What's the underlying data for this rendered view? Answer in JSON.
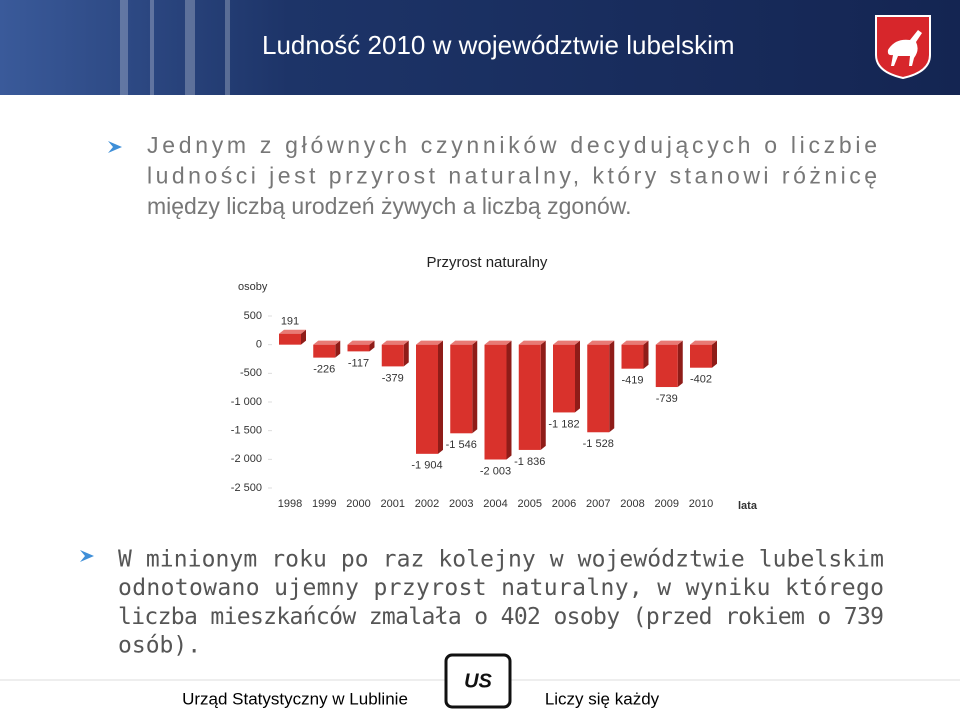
{
  "header": {
    "title": "Ludność 2010 w województwie lubelskim"
  },
  "intro_lines": [
    "Jednym z głównych czynników decydujących o liczbie",
    "ludności  jest przyrost naturalny, który stanowi różnicę",
    "między liczbą urodzeń żywych a liczbą zgonów."
  ],
  "chart_data": {
    "type": "bar",
    "title": "Przyrost naturalny",
    "y_label": "osoby",
    "x_label": "lata",
    "categories": [
      "1998",
      "1999",
      "2000",
      "2001",
      "2002",
      "2003",
      "2004",
      "2005",
      "2006",
      "2007",
      "2008",
      "2009",
      "2010"
    ],
    "values": [
      191,
      -226,
      -117,
      -379,
      -1904,
      -1546,
      -2003,
      -1836,
      -1182,
      -1528,
      -419,
      -739,
      -402
    ],
    "value_labels": [
      "191",
      "-226",
      "-117",
      "-379",
      "-1 904",
      "-1 546",
      "-2 003",
      "-1 836",
      "-1 182",
      "-1 528",
      "-419",
      "-739",
      "-402"
    ],
    "color": "#d9322c",
    "ylim": [
      -2500,
      500
    ],
    "yticks": [
      {
        "value": -2500,
        "label": "-2 500"
      },
      {
        "value": -2000,
        "label": "-2 000"
      },
      {
        "value": -1500,
        "label": "-1 500"
      },
      {
        "value": -1000,
        "label": "-1 000"
      },
      -500,
      0,
      500
    ],
    "grid": false
  },
  "summary_lines": [
    "W minionym roku po raz kolejny w województwie lubelskim",
    "odnotowano ujemny przyrost naturalny, w wyniku którego",
    "liczba mieszkańców zmalała o 402 osoby (przed rokiem o 739",
    "osób)."
  ],
  "footer": {
    "left": "Urząd Statystyczny w Lublinie",
    "right": "Liczy się każdy"
  }
}
